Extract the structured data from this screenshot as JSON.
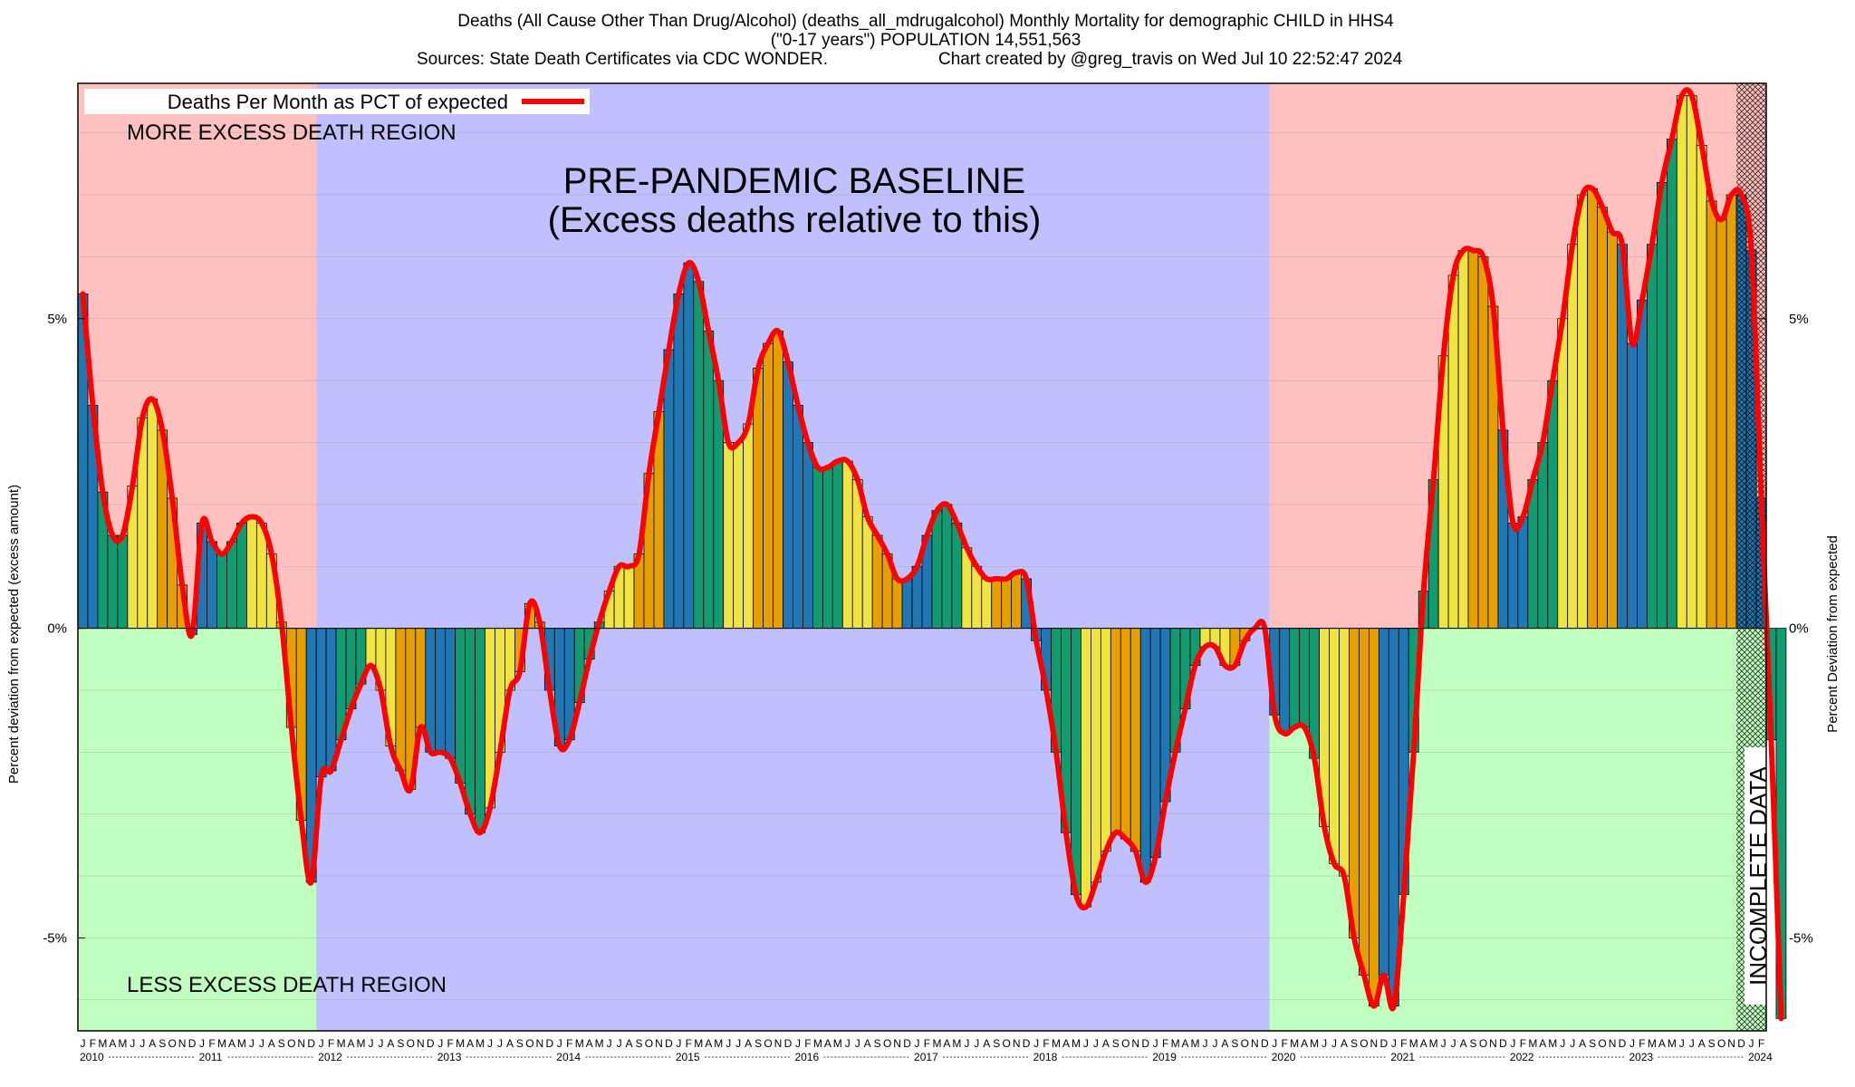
{
  "header": {
    "line1": "Deaths (All Cause Other Than Drug/Alcohol) (deaths_all_mdrugalcohol) Monthly Mortality for demographic CHILD in HHS4",
    "line2": "(\"0-17 years\") POPULATION 14,551,563",
    "line3_left": "Sources: State Death Certificates via CDC WONDER.",
    "line3_right": "Chart created by @greg_travis on Wed Jul 10 22:52:47 2024"
  },
  "chart_data": {
    "type": "bar",
    "ylabel_left": "Percent deviation from expected (excess amount)",
    "ylabel_right": "Percent Deviation from expected",
    "ylim": [
      -6.5,
      8.8
    ],
    "yticks": [
      {
        "value": 5,
        "label": "5%"
      },
      {
        "value": 0,
        "label": "0%"
      },
      {
        "value": -5,
        "label": "-5%"
      }
    ],
    "legend": {
      "label": "Deaths Per Month as PCT of expected",
      "color": "#ff0000",
      "position": "top-left"
    },
    "regions": [
      {
        "from": "2010-01",
        "to": "2012-01",
        "color": "#ffc0c0",
        "where": "positive"
      },
      {
        "from": "2010-01",
        "to": "2012-01",
        "color": "#c0ffc0",
        "where": "negative"
      },
      {
        "from": "2012-01",
        "to": "2020-01",
        "color": "#c0c0ff",
        "where": "all"
      },
      {
        "from": "2020-01",
        "to": "2024-01",
        "color": "#ffc0c0",
        "where": "positive"
      },
      {
        "from": "2020-01",
        "to": "2024-01",
        "color": "#c0ffc0",
        "where": "negative"
      }
    ],
    "annotations": {
      "more_excess": "MORE EXCESS DEATH REGION",
      "less_excess": "LESS EXCESS DEATH REGION",
      "baseline_line1": "PRE-PANDEMIC BASELINE",
      "baseline_line2": "(Excess deaths relative to this)",
      "incomplete": "INCOMPLETE DATA"
    },
    "season_colors": {
      "winter": "#1f77b4",
      "spring": "#129a70",
      "summer": "#f0e442",
      "fall": "#e69f00"
    },
    "month_letters": [
      "J",
      "F",
      "M",
      "A",
      "M",
      "J",
      "J",
      "A",
      "S",
      "O",
      "N",
      "D"
    ],
    "years": [
      2010,
      2011,
      2012,
      2013,
      2014,
      2015,
      2016,
      2017,
      2018,
      2019,
      2020,
      2021,
      2022,
      2023,
      2024
    ],
    "start": "2010-01",
    "values": [
      5.4,
      3.6,
      2.2,
      1.5,
      1.5,
      2.3,
      3.4,
      3.7,
      3.2,
      2.1,
      0.7,
      -0.1,
      1.7,
      1.4,
      1.2,
      1.4,
      1.7,
      1.8,
      1.7,
      1.2,
      0.1,
      -1.6,
      -3.1,
      -4.1,
      -2.4,
      -2.3,
      -1.8,
      -1.3,
      -0.9,
      -0.6,
      -1.0,
      -1.9,
      -2.3,
      -2.6,
      -1.6,
      -2.0,
      -2.0,
      -2.1,
      -2.5,
      -3.0,
      -3.3,
      -2.9,
      -2.0,
      -1.0,
      -0.7,
      0.4,
      0.1,
      -1.0,
      -1.9,
      -1.8,
      -1.2,
      -0.5,
      0.1,
      0.6,
      1.0,
      1.0,
      1.2,
      2.5,
      3.5,
      4.5,
      5.4,
      5.9,
      5.6,
      4.8,
      4.0,
      3.0,
      3.0,
      3.3,
      4.2,
      4.6,
      4.8,
      4.3,
      3.6,
      3.0,
      2.6,
      2.6,
      2.7,
      2.7,
      2.4,
      1.8,
      1.5,
      1.2,
      0.8,
      0.8,
      1.0,
      1.5,
      1.9,
      2.0,
      1.7,
      1.3,
      1.0,
      0.8,
      0.8,
      0.8,
      0.9,
      0.8,
      -0.2,
      -1.0,
      -2.0,
      -3.3,
      -4.3,
      -4.5,
      -4.1,
      -3.6,
      -3.3,
      -3.4,
      -3.6,
      -4.1,
      -3.7,
      -2.8,
      -2.0,
      -1.3,
      -0.6,
      -0.3,
      -0.3,
      -0.6,
      -0.6,
      -0.2,
      0.0,
      0.0,
      -1.4,
      -1.7,
      -1.6,
      -1.6,
      -2.1,
      -3.2,
      -3.8,
      -4.0,
      -5.0,
      -5.6,
      -6.1,
      -5.6,
      -6.1,
      -4.3,
      -2.0,
      0.6,
      2.4,
      4.4,
      5.7,
      6.1,
      6.1,
      6.0,
      5.2,
      3.2,
      1.7,
      1.8,
      2.4,
      3.0,
      4.0,
      5.0,
      6.2,
      7.0,
      7.1,
      6.8,
      6.4,
      6.2,
      4.6,
      5.3,
      6.2,
      7.2,
      7.9,
      8.6,
      8.6,
      7.8,
      6.9,
      6.6,
      7.0,
      7.0,
      6.1,
      2.1,
      -1.8,
      -6.3
    ],
    "incomplete_from": "2023-12"
  }
}
